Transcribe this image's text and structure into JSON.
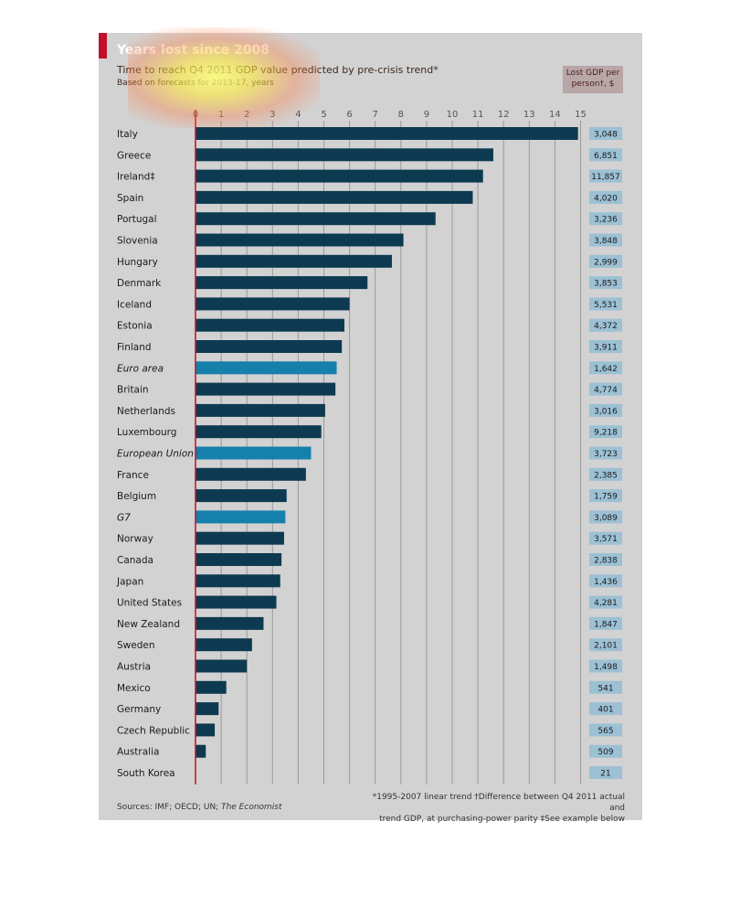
{
  "header": {
    "title": "Years lost since 2008",
    "subtitle": "Time to reach Q4 2011 GDP value predicted by pre-crisis trend*",
    "subtitle2": "Based on forecasts for 2013-17, years",
    "lost_gdp_line1": "Lost GDP per",
    "lost_gdp_line2": "person†, $"
  },
  "footer": {
    "note_line1": "*1995-2007 linear trend   †Difference between Q4 2011 actual and",
    "note_line2": "trend GDP, at purchasing-power parity   ‡See example below",
    "sources_prefix": "Sources: IMF; OECD; UN; ",
    "sources_italic": "The Economist"
  },
  "colors": {
    "panel": "#d2d2d2",
    "bar_country": "#0d3a50",
    "bar_aggregate": "#1480ab",
    "accent": "#c0102a",
    "value_box": "#9cc0d4"
  },
  "chart_data": {
    "type": "bar",
    "orientation": "horizontal",
    "xlim": [
      0,
      15
    ],
    "xticks": [
      0,
      1,
      2,
      3,
      4,
      5,
      6,
      7,
      8,
      9,
      10,
      11,
      12,
      13,
      14,
      15
    ],
    "grid": true,
    "categories": [
      "Italy",
      "Greece",
      "Ireland‡",
      "Spain",
      "Portugal",
      "Slovenia",
      "Hungary",
      "Denmark",
      "Iceland",
      "Estonia",
      "Finland",
      "Euro area",
      "Britain",
      "Netherlands",
      "Luxembourg",
      "European Union",
      "France",
      "Belgium",
      "G7",
      "Norway",
      "Canada",
      "Japan",
      "United States",
      "New Zealand",
      "Sweden",
      "Austria",
      "Mexico",
      "Germany",
      "Czech Republic",
      "Australia",
      "South Korea"
    ],
    "aggregates": [
      "Euro area",
      "European Union",
      "G7"
    ],
    "values": [
      14.9,
      11.6,
      11.2,
      10.8,
      9.35,
      8.1,
      7.65,
      6.7,
      6.0,
      5.8,
      5.7,
      5.5,
      5.45,
      5.05,
      4.9,
      4.5,
      4.3,
      3.55,
      3.5,
      3.45,
      3.35,
      3.3,
      3.15,
      2.65,
      2.2,
      2.0,
      1.2,
      0.9,
      0.75,
      0.4,
      0
    ],
    "lost_gdp_per_person": [
      "3,048",
      "6,851",
      "11,857",
      "4,020",
      "3,236",
      "3,848",
      "2,999",
      "3,853",
      "5,531",
      "4,372",
      "3,911",
      "1,642",
      "4,774",
      "3,016",
      "9,218",
      "3,723",
      "2,385",
      "1,759",
      "3,089",
      "3,571",
      "2,838",
      "1,436",
      "4,281",
      "1,847",
      "2,101",
      "1,498",
      "541",
      "401",
      "565",
      "509",
      "21"
    ]
  }
}
